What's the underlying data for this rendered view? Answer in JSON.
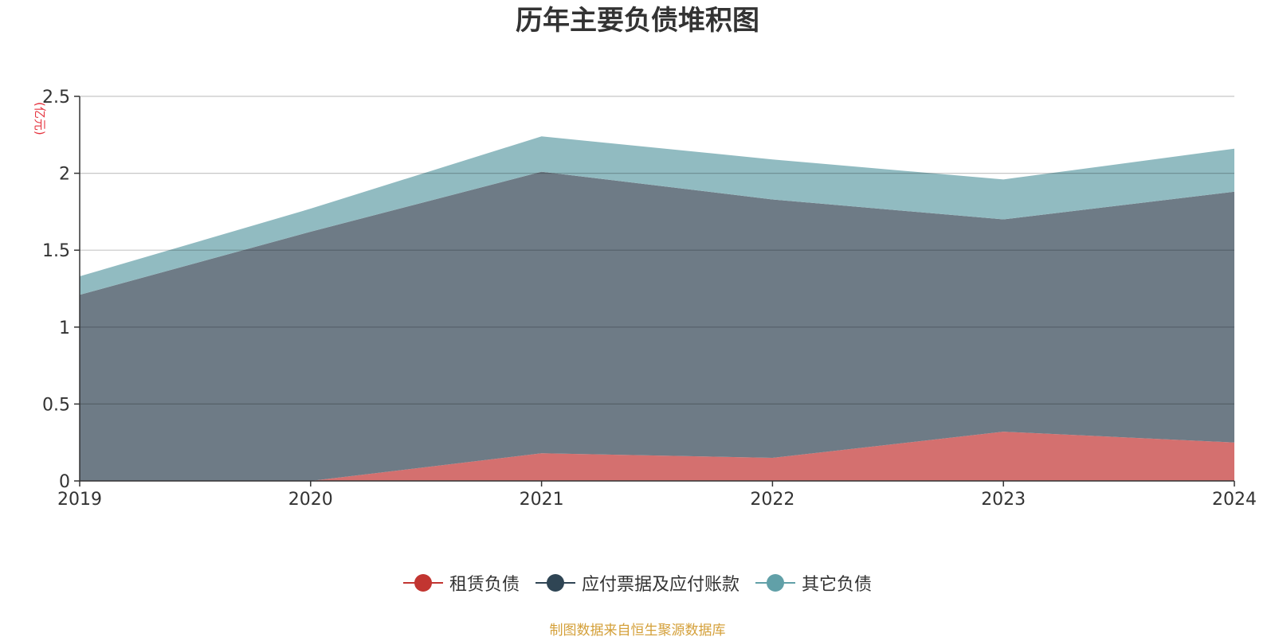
{
  "title": "历年主要负债堆积图",
  "unit": "(亿元)",
  "source": "制图数据来自恒生聚源数据库",
  "chart_data": {
    "type": "area",
    "stacked": true,
    "title": "历年主要负债堆积图",
    "ylabel": "(亿元)",
    "categories": [
      "2019",
      "2020",
      "2021",
      "2022",
      "2023",
      "2024"
    ],
    "ylim": [
      0,
      2.5
    ],
    "yticks": [
      0,
      0.5,
      1,
      1.5,
      2,
      2.5
    ],
    "ytick_labels": [
      "0",
      "0.5",
      "1",
      "1.5",
      "2",
      "2.5"
    ],
    "grid": true,
    "legend_position": "bottom",
    "series": [
      {
        "name": "租赁负债",
        "values": [
          0,
          0,
          0.18,
          0.15,
          0.32,
          0.25
        ],
        "color": "#c23531",
        "fill": "#d4706f"
      },
      {
        "name": "应付票据及应付账款",
        "values": [
          1.21,
          1.62,
          1.83,
          1.68,
          1.38,
          1.63
        ],
        "color": "#2f4554",
        "fill": "#6e7b86"
      },
      {
        "name": "其它负债",
        "values": [
          0.12,
          0.15,
          0.23,
          0.26,
          0.26,
          0.28
        ],
        "color": "#61a0a8",
        "fill": "#91bbc1"
      }
    ]
  }
}
